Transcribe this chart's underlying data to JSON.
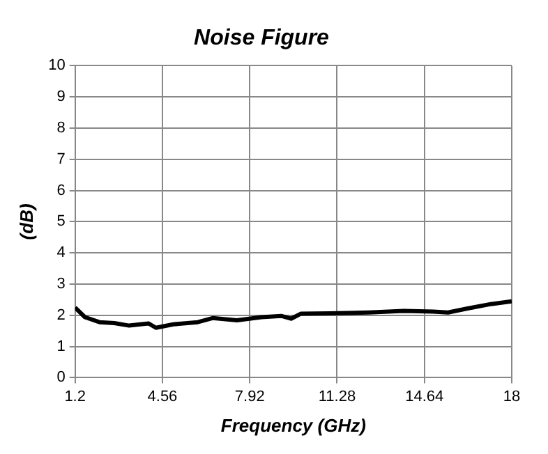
{
  "chart_data": {
    "type": "line",
    "title": "Noise Figure",
    "xlabel": "Frequency (GHz)",
    "ylabel": "(dB)",
    "x": [
      1.2,
      1.58,
      2.14,
      2.71,
      3.28,
      4.03,
      4.31,
      4.98,
      5.92,
      6.49,
      7.43,
      8.37,
      9.13,
      9.51,
      9.88,
      11.0,
      12.5,
      13.85,
      14.98,
      15.55,
      16.3,
      17.2,
      18
    ],
    "series": [
      {
        "color": "#000000",
        "values": [
          2.25,
          1.94,
          1.78,
          1.75,
          1.67,
          1.74,
          1.6,
          1.71,
          1.78,
          1.91,
          1.84,
          1.94,
          1.98,
          1.89,
          2.05,
          2.06,
          2.09,
          2.14,
          2.12,
          2.09,
          2.22,
          2.36,
          2.45
        ]
      }
    ],
    "xlim": [
      1.2,
      18
    ],
    "xticks": [
      1.2,
      4.56,
      7.92,
      11.28,
      14.64,
      18
    ],
    "ylim": [
      0,
      10
    ],
    "yticks": [
      0,
      1,
      2,
      3,
      4,
      5,
      6,
      7,
      8,
      9,
      10
    ],
    "grid": true,
    "legend": false,
    "marker": "none",
    "line_style": "solid"
  }
}
